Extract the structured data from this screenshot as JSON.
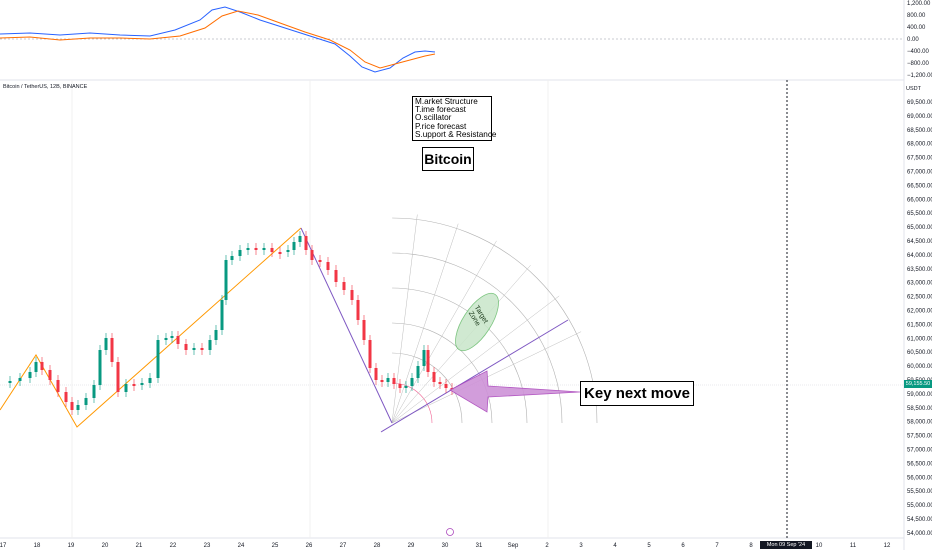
{
  "chart": {
    "symbol": "Bitcoin / TetherUS, 12B, BINANCE",
    "currency": "USDT",
    "current_price": "59,155.50",
    "crosshair_time": "Mon 09 Sep '24  00:16",
    "price_ticks": [
      "69,500.00",
      "69,000.00",
      "68,500.00",
      "68,000.00",
      "67,500.00",
      "67,000.00",
      "66,500.00",
      "66,000.00",
      "65,500.00",
      "65,000.00",
      "64,500.00",
      "64,000.00",
      "63,500.00",
      "63,000.00",
      "62,500.00",
      "62,000.00",
      "61,500.00",
      "61,000.00",
      "60,500.00",
      "60,000.00",
      "59,500.00",
      "59,000.00",
      "58,500.00",
      "58,000.00",
      "57,500.00",
      "57,000.00",
      "56,500.00",
      "56,000.00",
      "55,500.00",
      "55,000.00",
      "54,500.00",
      "54,000.00"
    ],
    "date_ticks": [
      "17",
      "18",
      "19",
      "20",
      "21",
      "22",
      "23",
      "24",
      "25",
      "26",
      "27",
      "28",
      "29",
      "30",
      "31",
      "Sep",
      "2",
      "3",
      "4",
      "5",
      "6",
      "7",
      "8",
      "9",
      "10",
      "11",
      "12"
    ],
    "oscillator_ticks": [
      "1,200.00",
      "800.00",
      "400.00",
      "0.00",
      "−400.00",
      "−800.00",
      "−1,200.00"
    ]
  },
  "annotations": {
    "acronym_lines": [
      "M.arket Structure",
      "T.ime forecast",
      "O.scillator",
      "P.rice forecast",
      "S.upport & Resistance"
    ],
    "title": "Bitcoin",
    "target_zone_line1": "Target",
    "target_zone_line2": "Zone",
    "key_move": "Key next move"
  },
  "colors": {
    "up_candle": "#089981",
    "down_candle": "#f23645",
    "uptrend_line": "#ff9800",
    "downtrend_line": "#7e57c2",
    "macd_line": "#2962ff",
    "signal_line": "#ff6d00",
    "arrow": "#ce93d8",
    "target_zone": "#c8e6c9"
  }
}
